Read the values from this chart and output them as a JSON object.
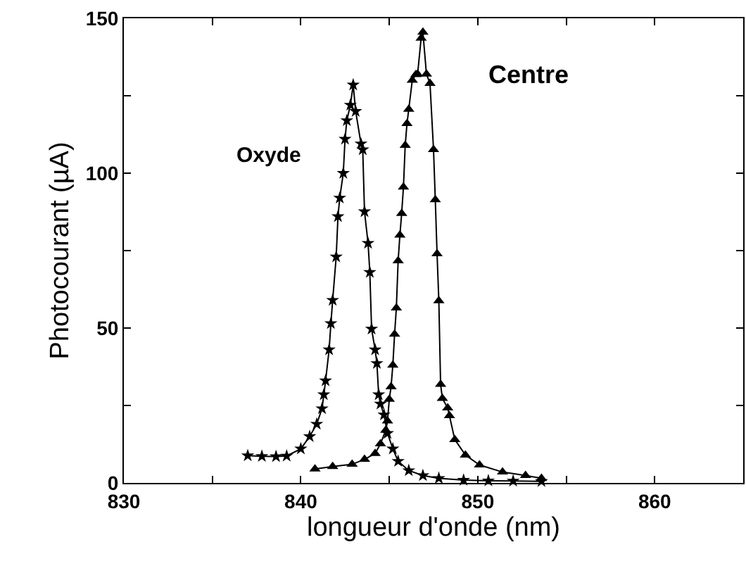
{
  "chart_data": {
    "type": "line",
    "xlabel": "longueur d'onde (nm)",
    "ylabel": "Photocourant (µA)",
    "xlim": [
      830,
      865
    ],
    "ylim": [
      0,
      150
    ],
    "xticks": [
      830,
      {
        "value": 835,
        "label": null
      },
      840,
      {
        "value": 845,
        "label": null
      },
      850,
      {
        "value": 855,
        "label": null
      },
      860
    ],
    "yticks": [
      0,
      {
        "value": 25,
        "label": null
      },
      50,
      {
        "value": 75,
        "label": null
      },
      100,
      {
        "value": 125,
        "label": null
      },
      150
    ],
    "legend": false,
    "line_style": "solid",
    "series": [
      {
        "name": "Oxyde",
        "color": "#000000",
        "marker": "star",
        "x": [
          837.0,
          837.8,
          838.6,
          839.2,
          840.0,
          840.5,
          840.9,
          841.2,
          841.3,
          841.4,
          841.6,
          841.7,
          841.8,
          842.0,
          842.1,
          842.2,
          842.4,
          842.5,
          842.6,
          842.8,
          842.96,
          843.1,
          843.4,
          843.5,
          843.6,
          843.8,
          843.9,
          844.0,
          844.2,
          844.3,
          844.4,
          844.5,
          844.7,
          844.9,
          845.2,
          845.5,
          846.1,
          846.9,
          847.8,
          849.2,
          850.6,
          852.0,
          853.6
        ],
        "values": [
          8.8,
          8.6,
          8.5,
          8.7,
          11,
          15,
          19,
          24,
          28.5,
          33,
          43,
          51.5,
          59,
          73,
          86,
          92,
          100,
          111,
          117,
          122,
          128.5,
          120,
          109.5,
          107.6,
          87.6,
          77.4,
          68,
          49.7,
          43,
          38.6,
          28.5,
          25.5,
          22,
          16,
          11,
          7,
          4,
          2.4,
          1.5,
          0.9,
          0.7,
          0.6,
          0.5
        ]
      },
      {
        "name": "Centre",
        "color": "#000000",
        "marker": "triangle",
        "x": [
          840.8,
          841.8,
          842.9,
          843.6,
          844.2,
          844.5,
          844.8,
          844.9,
          845.0,
          845.1,
          845.2,
          845.3,
          845.4,
          845.5,
          845.6,
          845.7,
          845.8,
          845.9,
          846.0,
          846.1,
          846.3,
          846.5,
          846.6,
          846.8,
          846.9,
          847.1,
          847.3,
          847.5,
          847.6,
          847.7,
          847.8,
          847.9,
          848.0,
          848.3,
          848.4,
          848.7,
          849.3,
          850.1,
          851.4,
          852.7,
          853.6
        ],
        "values": [
          4.5,
          5.3,
          6,
          7.6,
          9.5,
          12.6,
          17,
          20,
          27,
          31,
          38,
          48,
          56.5,
          71.7,
          80,
          87,
          95.5,
          109,
          116,
          120.6,
          130,
          131.8,
          132,
          143.6,
          145.5,
          132,
          129,
          107.6,
          91.4,
          74,
          58.8,
          31.8,
          27.3,
          24.2,
          21.7,
          14,
          9,
          5.8,
          3.5,
          2.4,
          1.5
        ]
      }
    ]
  }
}
